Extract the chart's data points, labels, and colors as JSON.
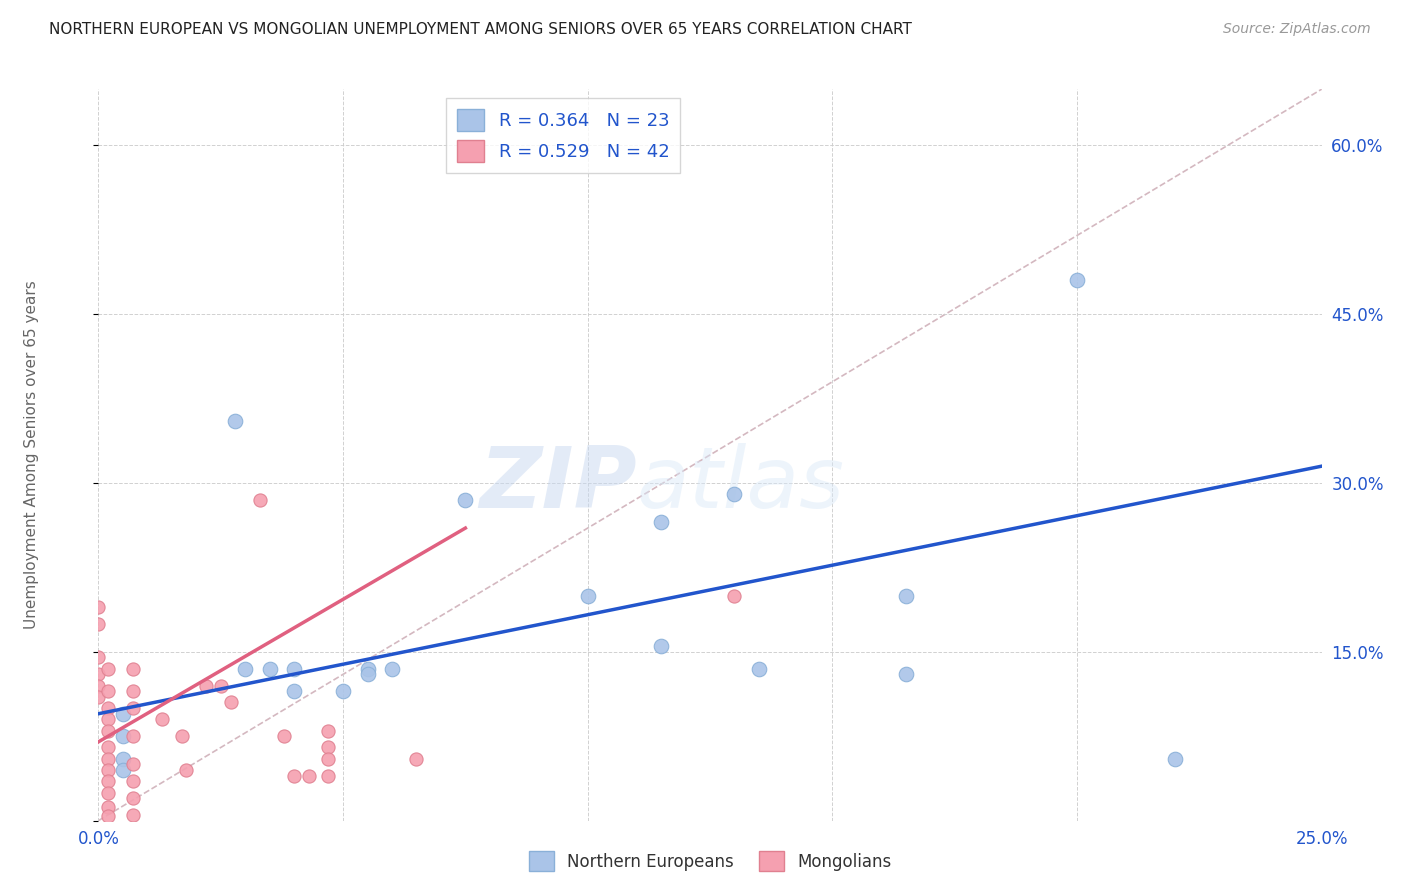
{
  "title": "NORTHERN EUROPEAN VS MONGOLIAN UNEMPLOYMENT AMONG SENIORS OVER 65 YEARS CORRELATION CHART",
  "source": "Source: ZipAtlas.com",
  "ylabel": "Unemployment Among Seniors over 65 years",
  "xlim": [
    0.0,
    0.25
  ],
  "ylim": [
    0.0,
    0.65
  ],
  "xticks": [
    0.0,
    0.05,
    0.1,
    0.15,
    0.2,
    0.25
  ],
  "yticks": [
    0.0,
    0.15,
    0.3,
    0.45,
    0.6
  ],
  "blue_label": "Northern Europeans",
  "pink_label": "Mongolians",
  "blue_R": "R = 0.364",
  "blue_N": "N = 23",
  "pink_R": "R = 0.529",
  "pink_N": "N = 42",
  "blue_color": "#aac4e8",
  "pink_color": "#f5a0b0",
  "blue_line_color": "#2255cc",
  "pink_line_color": "#e06080",
  "diag_color": "#c8c8c8",
  "watermark_zip": "ZIP",
  "watermark_atlas": "atlas",
  "background_color": "#ffffff",
  "blue_line_x": [
    0.0,
    0.25
  ],
  "blue_line_y": [
    0.095,
    0.315
  ],
  "pink_line_x": [
    0.0,
    0.075
  ],
  "pink_line_y": [
    0.07,
    0.26
  ],
  "diag_line_x": [
    0.0,
    0.25
  ],
  "diag_line_y": [
    0.0,
    0.65
  ],
  "blue_points": [
    [
      0.028,
      0.355
    ],
    [
      0.2,
      0.48
    ],
    [
      0.075,
      0.285
    ],
    [
      0.035,
      0.135
    ],
    [
      0.04,
      0.135
    ],
    [
      0.04,
      0.115
    ],
    [
      0.05,
      0.115
    ],
    [
      0.055,
      0.135
    ],
    [
      0.055,
      0.13
    ],
    [
      0.06,
      0.135
    ],
    [
      0.005,
      0.095
    ],
    [
      0.005,
      0.075
    ],
    [
      0.005,
      0.055
    ],
    [
      0.005,
      0.045
    ],
    [
      0.03,
      0.135
    ],
    [
      0.1,
      0.2
    ],
    [
      0.115,
      0.155
    ],
    [
      0.115,
      0.265
    ],
    [
      0.13,
      0.29
    ],
    [
      0.135,
      0.135
    ],
    [
      0.165,
      0.2
    ],
    [
      0.165,
      0.13
    ],
    [
      0.22,
      0.055
    ]
  ],
  "pink_points": [
    [
      0.0,
      0.19
    ],
    [
      0.0,
      0.175
    ],
    [
      0.0,
      0.145
    ],
    [
      0.0,
      0.13
    ],
    [
      0.0,
      0.12
    ],
    [
      0.0,
      0.11
    ],
    [
      0.002,
      0.135
    ],
    [
      0.002,
      0.115
    ],
    [
      0.002,
      0.1
    ],
    [
      0.002,
      0.09
    ],
    [
      0.002,
      0.08
    ],
    [
      0.002,
      0.065
    ],
    [
      0.002,
      0.055
    ],
    [
      0.002,
      0.045
    ],
    [
      0.002,
      0.035
    ],
    [
      0.002,
      0.025
    ],
    [
      0.002,
      0.012
    ],
    [
      0.002,
      0.004
    ],
    [
      0.007,
      0.135
    ],
    [
      0.007,
      0.115
    ],
    [
      0.007,
      0.1
    ],
    [
      0.007,
      0.075
    ],
    [
      0.007,
      0.05
    ],
    [
      0.007,
      0.035
    ],
    [
      0.007,
      0.02
    ],
    [
      0.007,
      0.005
    ],
    [
      0.013,
      0.09
    ],
    [
      0.017,
      0.075
    ],
    [
      0.018,
      0.045
    ],
    [
      0.022,
      0.12
    ],
    [
      0.025,
      0.12
    ],
    [
      0.027,
      0.105
    ],
    [
      0.033,
      0.285
    ],
    [
      0.038,
      0.075
    ],
    [
      0.04,
      0.04
    ],
    [
      0.043,
      0.04
    ],
    [
      0.047,
      0.08
    ],
    [
      0.047,
      0.065
    ],
    [
      0.047,
      0.055
    ],
    [
      0.047,
      0.04
    ],
    [
      0.065,
      0.055
    ],
    [
      0.13,
      0.2
    ]
  ]
}
